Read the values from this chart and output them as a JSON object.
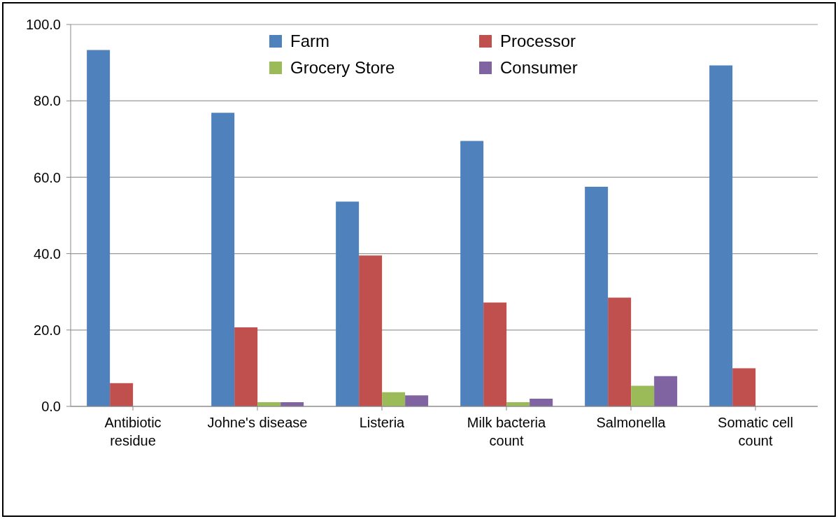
{
  "chart_data": {
    "type": "bar",
    "categories": [
      "Antibiotic residue",
      "Johne's disease",
      "Listeria",
      "Milk bacteria count",
      "Salmonella",
      "Somatic cell count"
    ],
    "series": [
      {
        "name": "Farm",
        "color": "#4f81bd",
        "values": [
          93.3,
          76.9,
          53.6,
          69.5,
          57.5,
          89.3
        ]
      },
      {
        "name": "Processor",
        "color": "#c0504d",
        "values": [
          6.1,
          20.7,
          39.5,
          27.2,
          28.5,
          10.0
        ]
      },
      {
        "name": "Grocery Store",
        "color": "#9bbb59",
        "values": [
          0,
          1.1,
          3.7,
          1.1,
          5.4,
          0
        ]
      },
      {
        "name": "Consumer",
        "color": "#8064a2",
        "values": [
          0,
          1.1,
          2.9,
          2.0,
          7.9,
          0
        ]
      }
    ],
    "ylim": [
      0,
      100
    ],
    "yticks": [
      {
        "value": 0,
        "label": "0.0"
      },
      {
        "value": 20,
        "label": "20.0"
      },
      {
        "value": 40,
        "label": "40.0"
      },
      {
        "value": 60,
        "label": "60.0"
      },
      {
        "value": 80,
        "label": "80.0"
      },
      {
        "value": 100,
        "label": "100.0"
      }
    ],
    "grid": "y",
    "legend": "top"
  }
}
